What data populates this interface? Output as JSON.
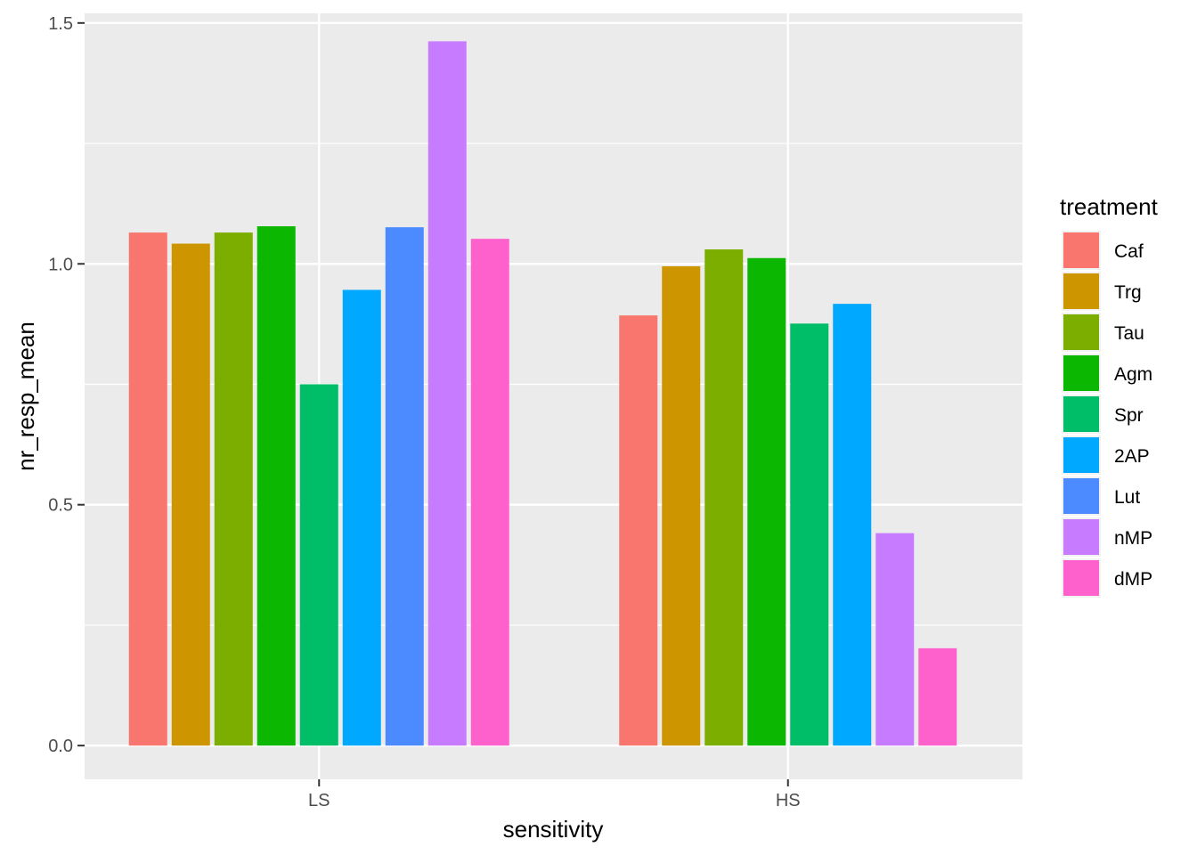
{
  "chart_data": {
    "type": "bar",
    "xlabel": "sensitivity",
    "ylabel": "nr_resp_mean",
    "categories": [
      "LS",
      "HS"
    ],
    "ylim": [
      -0.07,
      1.52
    ],
    "yticks": [
      0.0,
      0.5,
      1.0,
      1.5
    ],
    "ytick_labels": [
      "0.0",
      "0.5",
      "1.0",
      "1.5"
    ],
    "grid": true,
    "legend": {
      "title": "treatment",
      "position": "right"
    },
    "series": [
      {
        "name": "Caf",
        "color": "#F8766D",
        "values": [
          1.065,
          0.893
        ]
      },
      {
        "name": "Trg",
        "color": "#CD9600",
        "values": [
          1.042,
          0.995
        ]
      },
      {
        "name": "Tau",
        "color": "#7CAE00",
        "values": [
          1.065,
          1.03
        ]
      },
      {
        "name": "Agm",
        "color": "#0CB702",
        "values": [
          1.078,
          1.012
        ]
      },
      {
        "name": "Spr",
        "color": "#00BE67",
        "values": [
          0.75,
          0.876
        ]
      },
      {
        "name": "2AP",
        "color": "#00A9FF",
        "values": [
          0.946,
          0.917
        ]
      },
      {
        "name": "Lut",
        "color": "#4B8BFF",
        "values": [
          1.076,
          null
        ]
      },
      {
        "name": "nMP",
        "color": "#C77CFF",
        "values": [
          1.462,
          0.441
        ]
      },
      {
        "name": "dMP",
        "color": "#FF61CC",
        "values": [
          1.052,
          0.202
        ]
      }
    ]
  }
}
